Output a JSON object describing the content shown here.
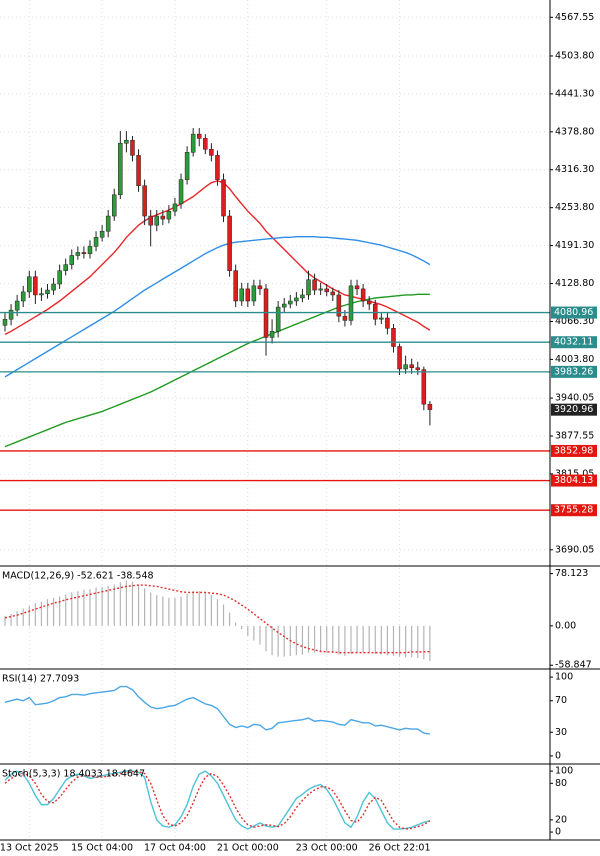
{
  "chart_data": [
    {
      "type": "candlestick",
      "categories": [
        null,
        null,
        null,
        null,
        "13 Oct 2025",
        null,
        null,
        null,
        null,
        null,
        null,
        null,
        null,
        null,
        null,
        null,
        "15 Oct 04:00",
        null,
        null,
        null,
        null,
        null,
        null,
        null,
        null,
        null,
        null,
        null,
        "17 Oct 04:00",
        null,
        null,
        null,
        null,
        null,
        null,
        null,
        null,
        null,
        null,
        null,
        "21 Oct 00:00",
        null,
        null,
        null,
        null,
        null,
        null,
        null,
        null,
        null,
        null,
        null,
        null,
        "23 Oct 00:00",
        null,
        null,
        null,
        null,
        null,
        null,
        null,
        null,
        null,
        null,
        null,
        "26 Oct 22:01",
        null,
        null,
        null,
        null,
        null
      ],
      "open": [
        4060,
        4070,
        4085,
        4100,
        4115,
        4140,
        4110,
        4112,
        4118,
        4128,
        4150,
        4160,
        4175,
        4180,
        4178,
        4190,
        4205,
        4215,
        4240,
        4275,
        4360,
        4365,
        4340,
        4290,
        4240,
        4225,
        4240,
        4235,
        4248,
        4260,
        4300,
        4345,
        4375,
        4368,
        4350,
        4340,
        4300,
        4240,
        4150,
        4100,
        4120,
        4100,
        4125,
        4120,
        4040,
        4050,
        4090,
        4095,
        4100,
        4105,
        4110,
        4135,
        4118,
        4120,
        4115,
        4110,
        4075,
        4068,
        4125,
        4120,
        4100,
        4095,
        4070,
        4072,
        4055,
        4025,
        3988,
        3995,
        3990,
        3987,
        3930
      ],
      "high": [
        4080,
        4095,
        4110,
        4125,
        4150,
        4150,
        4122,
        4128,
        4138,
        4160,
        4170,
        4185,
        4190,
        4190,
        4200,
        4215,
        4225,
        4250,
        4285,
        4380,
        4380,
        4372,
        4350,
        4300,
        4250,
        4250,
        4250,
        4258,
        4270,
        4310,
        4355,
        4385,
        4385,
        4375,
        4360,
        4348,
        4310,
        4250,
        4160,
        4130,
        4130,
        4135,
        4135,
        4128,
        4070,
        4100,
        4105,
        4110,
        4115,
        4120,
        4150,
        4145,
        4130,
        4128,
        4122,
        4118,
        4085,
        4135,
        4135,
        4128,
        4108,
        4102,
        4080,
        4080,
        4062,
        4030,
        4010,
        4005,
        4000,
        3992,
        3935
      ],
      "low": [
        4050,
        4060,
        4075,
        4090,
        4105,
        4095,
        4100,
        4104,
        4110,
        4120,
        4142,
        4152,
        4168,
        4170,
        4170,
        4182,
        4198,
        4205,
        4232,
        4268,
        4345,
        4330,
        4280,
        4225,
        4190,
        4215,
        4225,
        4228,
        4240,
        4252,
        4292,
        4338,
        4355,
        4342,
        4330,
        4290,
        4230,
        4140,
        4090,
        4092,
        4090,
        4092,
        4110,
        4010,
        4030,
        4040,
        4082,
        4088,
        4092,
        4098,
        4102,
        4110,
        4110,
        4108,
        4100,
        4065,
        4058,
        4060,
        4110,
        4090,
        4085,
        4060,
        4062,
        4045,
        4015,
        3978,
        3980,
        3980,
        3978,
        3920,
        3895
      ],
      "close": [
        4070,
        4085,
        4100,
        4115,
        4140,
        4110,
        4112,
        4118,
        4128,
        4150,
        4160,
        4175,
        4180,
        4178,
        4190,
        4205,
        4215,
        4240,
        4275,
        4360,
        4365,
        4340,
        4290,
        4240,
        4225,
        4240,
        4235,
        4248,
        4260,
        4300,
        4345,
        4375,
        4368,
        4350,
        4340,
        4300,
        4240,
        4150,
        4100,
        4120,
        4100,
        4125,
        4120,
        4040,
        4050,
        4090,
        4095,
        4100,
        4105,
        4110,
        4135,
        4118,
        4120,
        4115,
        4110,
        4075,
        4068,
        4125,
        4120,
        4100,
        4095,
        4070,
        4072,
        4055,
        4025,
        3988,
        3995,
        3990,
        3987,
        3930,
        3921
      ],
      "up_color": "#2f9a3a",
      "down_color": "#d9201f",
      "series": [
        {
          "color": "#e8272a",
          "values": [
            4045,
            4050,
            4056,
            4062,
            4068,
            4074,
            4080,
            4086,
            4093,
            4100,
            4108,
            4116,
            4124,
            4132,
            4140,
            4150,
            4160,
            4170,
            4180,
            4192,
            4205,
            4215,
            4225,
            4232,
            4238,
            4242,
            4246,
            4250,
            4255,
            4260,
            4266,
            4272,
            4280,
            4288,
            4295,
            4298,
            4295,
            4285,
            4272,
            4260,
            4248,
            4238,
            4228,
            4215,
            4205,
            4195,
            4185,
            4175,
            4165,
            4155,
            4145,
            4138,
            4132,
            4126,
            4120,
            4115,
            4110,
            4108,
            4105,
            4103,
            4100,
            4097,
            4094,
            4090,
            4085,
            4080,
            4075,
            4070,
            4065,
            4058,
            4052
          ]
        },
        {
          "color": "#2f8ee8",
          "values": [
            3975,
            3981,
            3987,
            3993,
            3999,
            4005,
            4011,
            4017,
            4023,
            4029,
            4035,
            4041,
            4047,
            4053,
            4059,
            4065,
            4071,
            4077,
            4083,
            4090,
            4097,
            4104,
            4111,
            4118,
            4124,
            4130,
            4136,
            4142,
            4148,
            4154,
            4160,
            4166,
            4172,
            4178,
            4183,
            4188,
            4192,
            4195,
            4197,
            4198,
            4199,
            4200,
            4201,
            4202,
            4203,
            4204,
            4205,
            4205,
            4206,
            4206,
            4206,
            4206,
            4205,
            4205,
            4204,
            4203,
            4202,
            4201,
            4200,
            4198,
            4196,
            4194,
            4192,
            4189,
            4186,
            4183,
            4180,
            4176,
            4171,
            4166,
            4160
          ]
        },
        {
          "color": "#1f9a1f",
          "values": [
            3860,
            3864,
            3868,
            3872,
            3876,
            3880,
            3884,
            3888,
            3892,
            3896,
            3900,
            3903,
            3906,
            3909,
            3912,
            3915,
            3918,
            3922,
            3926,
            3930,
            3934,
            3938,
            3942,
            3946,
            3950,
            3955,
            3960,
            3965,
            3970,
            3975,
            3980,
            3985,
            3990,
            3995,
            4000,
            4005,
            4010,
            4015,
            4020,
            4025,
            4030,
            4034,
            4038,
            4042,
            4046,
            4050,
            4054,
            4058,
            4062,
            4066,
            4070,
            4074,
            4078,
            4082,
            4086,
            4090,
            4093,
            4096,
            4099,
            4101,
            4103,
            4105,
            4106,
            4107,
            4108,
            4109,
            4110,
            4110,
            4111,
            4111,
            4111
          ]
        }
      ],
      "levels": [
        {
          "value": 4080.96,
          "color": "#2b8c8c"
        },
        {
          "value": 4032.11,
          "color": "#2b8c8c"
        },
        {
          "value": 3983.26,
          "color": "#2b8c8c"
        },
        {
          "value": 3852.98,
          "color": "#e3150f"
        },
        {
          "value": 3804.13,
          "color": "#e3150f"
        },
        {
          "value": 3755.28,
          "color": "#e3150f"
        }
      ],
      "last_price": 3920.96,
      "ylim": [
        3665,
        4596
      ],
      "yticks": [
        4567.55,
        {
          "value": 4503.8,
          "label": "4503.80"
        },
        {
          "value": 4441.3,
          "label": "4441.30"
        },
        {
          "value": 4378.8,
          "label": "4378.80"
        },
        {
          "value": 4316.3,
          "label": "4316.30"
        },
        {
          "value": 4253.8,
          "label": "4253.80"
        },
        {
          "value": 4191.3,
          "label": "4191.30"
        },
        {
          "value": 4128.8,
          "label": "4128.80"
        },
        {
          "value": 4066.3,
          "label": "4066.30"
        },
        {
          "value": 4003.8,
          "label": "4003.80"
        },
        3940.05,
        3877.55,
        3815.05,
        3690.05
      ],
      "grid": true
    },
    {
      "type": "macd",
      "title": "MACD(12,26,9) -52.621 -38.548",
      "histogram": {
        "color": "#b4b4b4",
        "values": [
          15,
          18,
          22,
          26,
          30,
          34,
          36,
          40,
          42,
          44,
          47,
          50,
          52,
          54,
          55,
          57,
          58,
          60,
          62,
          65,
          68,
          66,
          62,
          56,
          50,
          46,
          44,
          42,
          42,
          44,
          48,
          52,
          52,
          50,
          46,
          40,
          32,
          20,
          5,
          -5,
          -15,
          -22,
          -28,
          -38,
          -44,
          -46,
          -46,
          -45,
          -44,
          -43,
          -40,
          -40,
          -40,
          -40,
          -41,
          -43,
          -45,
          -42,
          -40,
          -40,
          -40,
          -42,
          -43,
          -44,
          -45,
          -46,
          -47,
          -47,
          -48,
          -50,
          -52.621
        ]
      },
      "series": [
        {
          "color": "#e03030",
          "style": "dotted",
          "values": [
            12,
            14,
            16,
            19,
            22,
            25,
            28,
            31,
            34,
            36,
            39,
            41,
            43,
            45,
            47,
            49,
            51,
            53,
            55,
            57,
            59,
            60,
            61,
            61,
            60,
            59,
            57,
            55,
            53,
            51,
            50,
            50,
            50,
            50,
            49,
            48,
            46,
            42,
            37,
            31,
            25,
            18,
            11,
            4,
            -3,
            -10,
            -16,
            -22,
            -27,
            -31,
            -34,
            -36,
            -38,
            -39,
            -39,
            -40,
            -40,
            -40,
            -40,
            -40,
            -40,
            -40,
            -40,
            -40,
            -40,
            -40,
            -40,
            -39,
            -39,
            -38.8,
            -38.548
          ]
        }
      ],
      "ylim": [
        -63,
        88
      ],
      "yticks": [
        78.123,
        {
          "value": 0,
          "label": "0.00"
        },
        -58.847
      ]
    },
    {
      "type": "line",
      "title": "RSI(14) 27.7093",
      "series": [
        {
          "color": "#4aa6e4",
          "values": [
            68,
            70,
            72,
            70,
            74,
            65,
            66,
            67,
            70,
            74,
            75,
            78,
            78,
            77,
            79,
            80,
            81,
            82,
            83,
            88,
            88,
            84,
            75,
            68,
            62,
            60,
            61,
            63,
            64,
            68,
            72,
            74,
            70,
            66,
            64,
            60,
            50,
            40,
            36,
            38,
            36,
            40,
            39,
            33,
            35,
            42,
            43,
            44,
            45,
            46,
            48,
            44,
            45,
            44,
            43,
            40,
            39,
            46,
            44,
            42,
            42,
            38,
            39,
            37,
            35,
            33,
            35,
            34,
            34,
            29,
            27.7093
          ]
        }
      ],
      "ylim": [
        -9,
        109
      ],
      "yticks": [
        100,
        70,
        30,
        0
      ]
    },
    {
      "type": "line",
      "title": "Stoch(5,3,3) 18.4033 18.4647",
      "series": [
        {
          "color": "#4cc3d6",
          "values": [
            85,
            95,
            100,
            95,
            80,
            60,
            45,
            45,
            55,
            70,
            85,
            92,
            95,
            92,
            88,
            90,
            92,
            95,
            96,
            98,
            100,
            100,
            98,
            90,
            50,
            20,
            10,
            8,
            12,
            25,
            45,
            75,
            95,
            100,
            92,
            80,
            60,
            40,
            20,
            10,
            5,
            10,
            15,
            10,
            8,
            10,
            25,
            40,
            55,
            62,
            70,
            75,
            78,
            70,
            55,
            35,
            15,
            8,
            25,
            50,
            65,
            55,
            35,
            15,
            5,
            5,
            6,
            8,
            12,
            16,
            18.4033
          ]
        },
        {
          "color": "#e03030",
          "style": "dotted",
          "values": [
            80,
            88,
            93,
            97,
            92,
            80,
            62,
            50,
            48,
            57,
            70,
            82,
            90,
            93,
            92,
            90,
            90,
            92,
            94,
            96,
            98,
            99,
            99,
            96,
            80,
            53,
            27,
            13,
            10,
            15,
            27,
            48,
            72,
            90,
            96,
            91,
            77,
            60,
            40,
            23,
            12,
            8,
            10,
            12,
            11,
            9,
            14,
            25,
            40,
            52,
            62,
            69,
            74,
            74,
            68,
            53,
            35,
            19,
            16,
            28,
            47,
            57,
            52,
            35,
            18,
            8,
            5,
            6,
            9,
            12,
            18.4647
          ]
        }
      ],
      "ylim": [
        -13,
        110
      ],
      "yticks": [
        100,
        80,
        20,
        0
      ]
    }
  ]
}
